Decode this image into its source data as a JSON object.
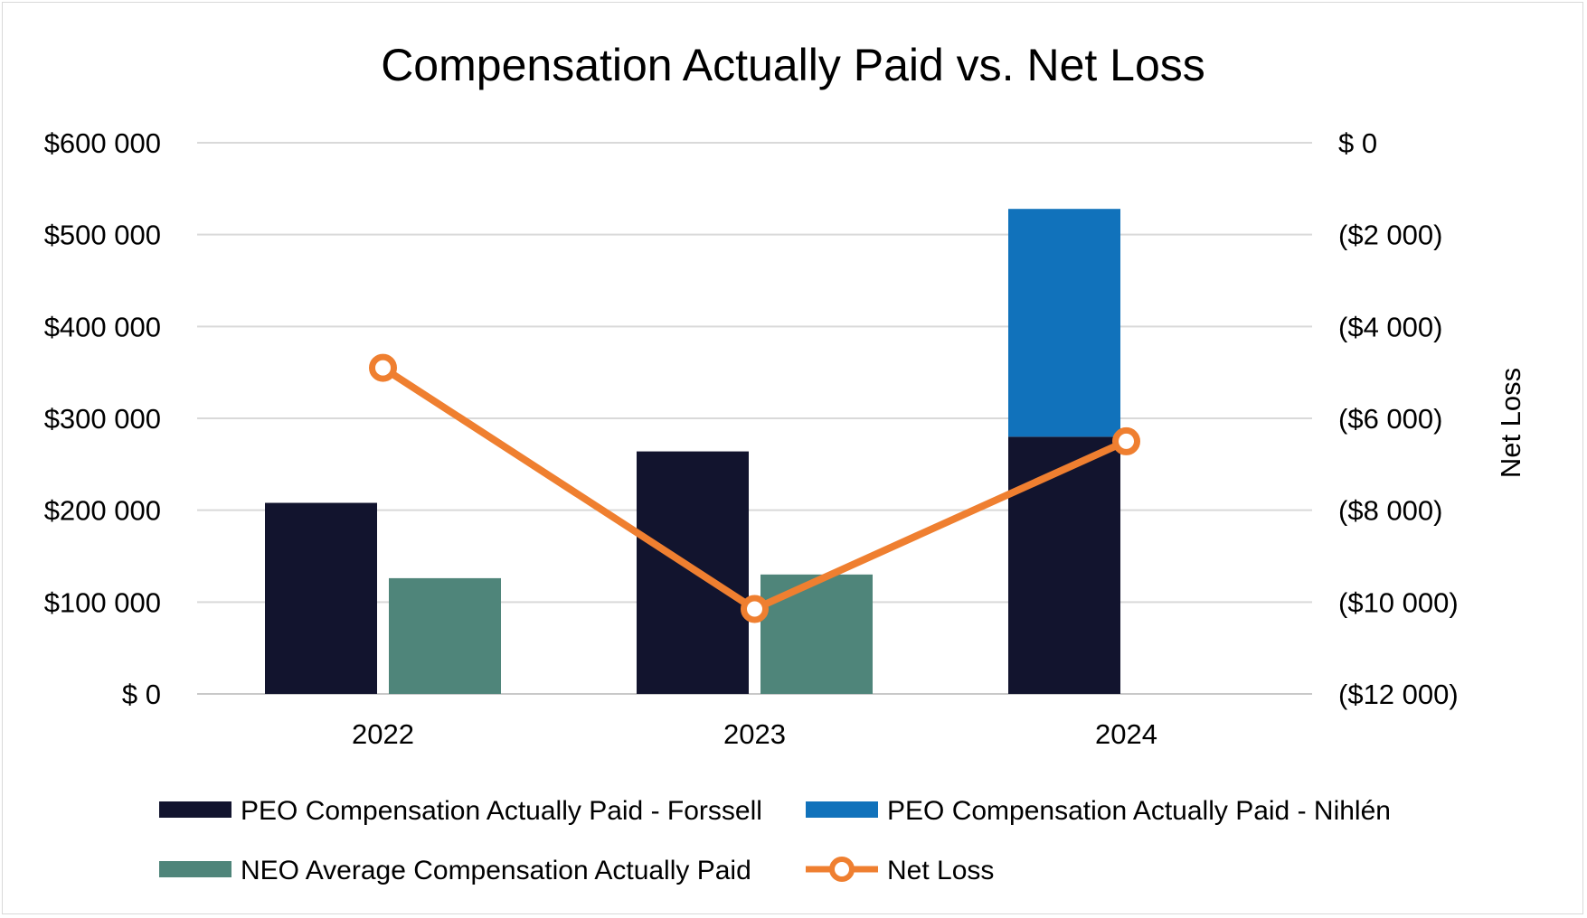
{
  "chart_data": {
    "type": "bar",
    "title": "Compensation Actually Paid vs. Net Loss",
    "categories": [
      "2022",
      "2023",
      "2024"
    ],
    "y_left": {
      "label": "",
      "lim": [
        0,
        600000
      ],
      "ticks": [
        0,
        100000,
        200000,
        300000,
        400000,
        500000,
        600000
      ],
      "tick_labels": [
        "$ 0",
        "$100 000",
        "$200 000",
        "$300 000",
        "$400 000",
        "$500 000",
        "$600 000"
      ]
    },
    "y_right": {
      "label": "Net Loss",
      "lim": [
        -12000,
        0
      ],
      "ticks": [
        -12000,
        -10000,
        -8000,
        -6000,
        -4000,
        -2000,
        0
      ],
      "tick_labels": [
        "($12 000)",
        "($10 000)",
        "($8 000)",
        "($6 000)",
        "($4 000)",
        "($2 000)",
        "$ 0"
      ]
    },
    "grid": true,
    "legend_position": "bottom",
    "series": [
      {
        "name": "PEO Compensation Actually Paid - Forssell",
        "kind": "bar",
        "axis": "left",
        "stack": "peo",
        "color": "#12142e",
        "values": [
          208000,
          264000,
          280000
        ]
      },
      {
        "name": "PEO Compensation Actually Paid - Nihlén",
        "kind": "bar",
        "axis": "left",
        "stack": "peo",
        "color": "#1172bb",
        "values": [
          0,
          0,
          248000
        ]
      },
      {
        "name": "NEO Average Compensation Actually Paid",
        "kind": "bar",
        "axis": "left",
        "stack": "neo",
        "color": "#4f857a",
        "values": [
          126000,
          130000,
          null
        ]
      },
      {
        "name": "Net Loss",
        "kind": "line",
        "axis": "right",
        "color": "#ef7f30",
        "values": [
          -4900,
          -10150,
          -6500
        ]
      }
    ]
  }
}
